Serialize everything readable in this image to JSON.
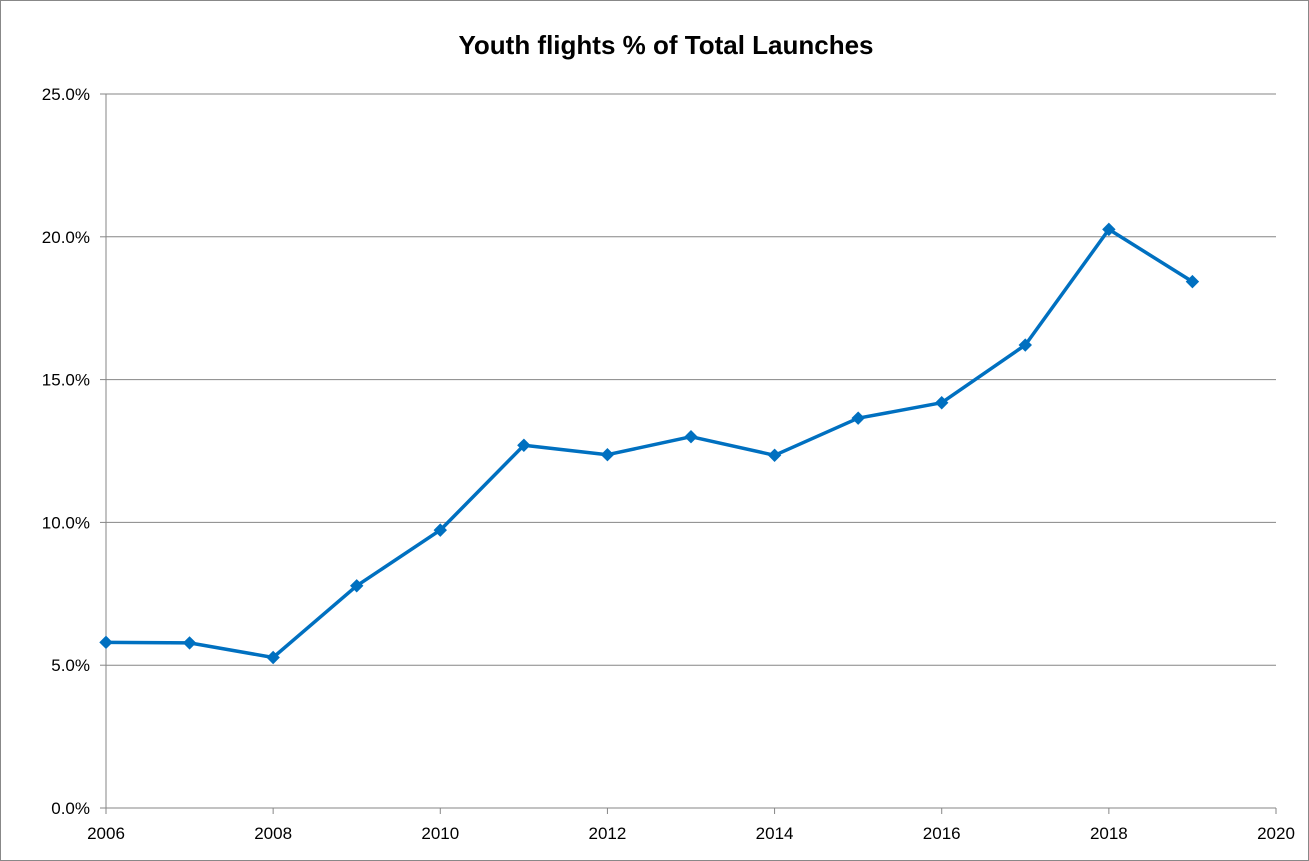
{
  "chart_data": {
    "type": "line",
    "title": "Youth flights % of Total Launches",
    "xlabel": "",
    "ylabel": "",
    "xlim": [
      2006,
      2020
    ],
    "ylim": [
      0.0,
      0.25
    ],
    "x_ticks": [
      2006,
      2008,
      2010,
      2012,
      2014,
      2016,
      2018,
      2020
    ],
    "x_tick_labels": [
      "2006",
      "2008",
      "2010",
      "2012",
      "2014",
      "2016",
      "2018",
      "2020"
    ],
    "y_ticks": [
      0.0,
      0.05,
      0.1,
      0.15,
      0.2,
      0.25
    ],
    "y_tick_labels": [
      "0.0%",
      "5.0%",
      "10.0%",
      "15.0%",
      "20.0%",
      "25.0%"
    ],
    "grid": "horizontal",
    "legend": "none",
    "series": [
      {
        "color": "#0070C0",
        "marker": "diamond",
        "x": [
          2006,
          2007,
          2008,
          2009,
          2010,
          2011,
          2012,
          2013,
          2014,
          2015,
          2016,
          2017,
          2018,
          2019
        ],
        "y": [
          0.058,
          0.0578,
          0.0527,
          0.0778,
          0.0973,
          0.127,
          0.1237,
          0.13,
          0.1235,
          0.1365,
          0.1419,
          0.1621,
          0.2026,
          0.1843
        ]
      }
    ]
  }
}
